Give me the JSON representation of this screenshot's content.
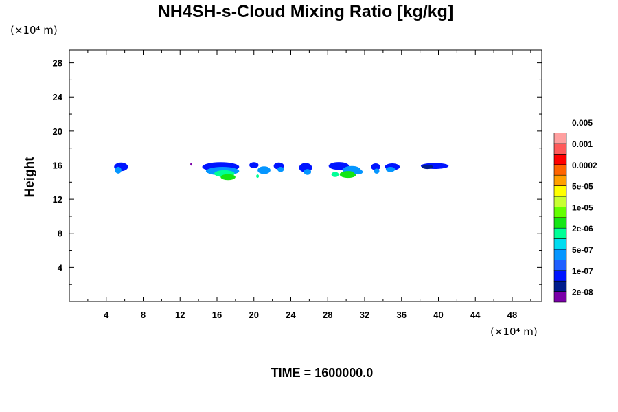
{
  "chart_data": {
    "type": "heatmap",
    "title": "NH4SH-s-Cloud Mixing Ratio [kg/kg]",
    "xunit": "(×10⁴ m)",
    "yunit": "(×10⁴ m)",
    "ylabel": "Height",
    "xlim": [
      0,
      51.2
    ],
    "ylim": [
      0,
      29.5
    ],
    "x_ticks": [
      4,
      8,
      12,
      16,
      20,
      24,
      28,
      32,
      36,
      40,
      44,
      48
    ],
    "y_ticks": [
      4,
      8,
      12,
      16,
      20,
      24,
      28
    ],
    "time_label": "TIME = 1600000.0",
    "colorbar": {
      "colors": [
        "#7a00a8",
        "#001c8c",
        "#0014ff",
        "#1f5fff",
        "#0596ff",
        "#00dcf0",
        "#00ff96",
        "#14e614",
        "#64ff00",
        "#c8ff32",
        "#ffff00",
        "#ffa000",
        "#ff6400",
        "#ff0000",
        "#ff5a5a",
        "#ffa0a0"
      ],
      "labels": [
        "2e-08",
        "1e-07",
        "5e-07",
        "2e-06",
        "1e-05",
        "5e-05",
        "0.0002",
        "0.001",
        "0.005"
      ]
    },
    "clouds": [
      {
        "x": 5.6,
        "y": 15.8,
        "rx": 0.75,
        "ry": 0.5,
        "c": 2
      },
      {
        "x": 5.3,
        "y": 15.4,
        "rx": 0.35,
        "ry": 0.4,
        "c": 4
      },
      {
        "x": 13.2,
        "y": 16.1,
        "rx": 0.1,
        "ry": 0.15,
        "c": 0
      },
      {
        "x": 16.4,
        "y": 15.8,
        "rx": 2.0,
        "ry": 0.55,
        "c": 2
      },
      {
        "x": 16.6,
        "y": 15.3,
        "rx": 1.8,
        "ry": 0.5,
        "c": 4
      },
      {
        "x": 16.8,
        "y": 15.0,
        "rx": 1.1,
        "ry": 0.4,
        "c": 6
      },
      {
        "x": 17.2,
        "y": 14.6,
        "rx": 0.8,
        "ry": 0.35,
        "c": 7
      },
      {
        "x": 20.0,
        "y": 16.0,
        "rx": 0.5,
        "ry": 0.35,
        "c": 2
      },
      {
        "x": 21.1,
        "y": 15.4,
        "rx": 0.7,
        "ry": 0.45,
        "c": 4
      },
      {
        "x": 20.4,
        "y": 14.7,
        "rx": 0.15,
        "ry": 0.2,
        "c": 6
      },
      {
        "x": 22.7,
        "y": 15.9,
        "rx": 0.55,
        "ry": 0.4,
        "c": 2
      },
      {
        "x": 22.9,
        "y": 15.5,
        "rx": 0.35,
        "ry": 0.3,
        "c": 4
      },
      {
        "x": 25.6,
        "y": 15.7,
        "rx": 0.7,
        "ry": 0.55,
        "c": 2
      },
      {
        "x": 25.8,
        "y": 15.2,
        "rx": 0.4,
        "ry": 0.35,
        "c": 4
      },
      {
        "x": 29.2,
        "y": 15.9,
        "rx": 1.1,
        "ry": 0.45,
        "c": 2
      },
      {
        "x": 30.6,
        "y": 15.4,
        "rx": 1.0,
        "ry": 0.5,
        "c": 4
      },
      {
        "x": 28.8,
        "y": 14.9,
        "rx": 0.4,
        "ry": 0.3,
        "c": 6
      },
      {
        "x": 30.2,
        "y": 14.9,
        "rx": 0.9,
        "ry": 0.4,
        "c": 7
      },
      {
        "x": 31.3,
        "y": 15.2,
        "rx": 0.5,
        "ry": 0.3,
        "c": 4
      },
      {
        "x": 33.2,
        "y": 15.8,
        "rx": 0.5,
        "ry": 0.4,
        "c": 2
      },
      {
        "x": 33.3,
        "y": 15.3,
        "rx": 0.3,
        "ry": 0.3,
        "c": 4
      },
      {
        "x": 35.0,
        "y": 15.8,
        "rx": 0.8,
        "ry": 0.4,
        "c": 2
      },
      {
        "x": 34.8,
        "y": 15.5,
        "rx": 0.5,
        "ry": 0.3,
        "c": 4
      },
      {
        "x": 39.6,
        "y": 15.9,
        "rx": 1.5,
        "ry": 0.35,
        "c": 2
      },
      {
        "x": 38.8,
        "y": 15.8,
        "rx": 0.6,
        "ry": 0.25,
        "c": 1
      }
    ]
  }
}
